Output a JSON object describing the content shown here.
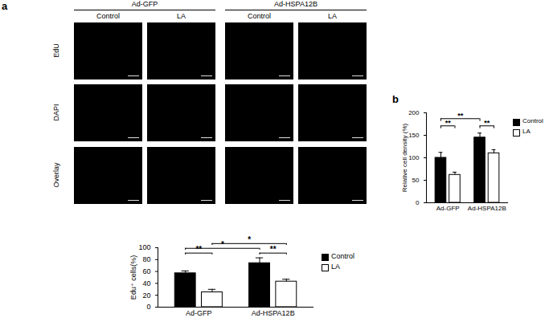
{
  "figure": {
    "panel_label": "a",
    "groups": [
      {
        "name": "Ad-GFP",
        "conditions": [
          "Control",
          "LA"
        ]
      },
      {
        "name": "Ad-HSPA12B",
        "conditions": [
          "Control",
          "LA"
        ]
      }
    ],
    "rows": [
      "EdU",
      "DAPI",
      "Overlay"
    ]
  },
  "chart_data": [
    {
      "type": "bar",
      "y_label": "Edu⁺ cells(%)",
      "categories": [
        "Ad-GFP",
        "Ad-HSPA12B"
      ],
      "series": [
        {
          "name": "Control",
          "color": "#000000",
          "values": [
            57,
            74
          ],
          "errors": [
            4,
            9
          ]
        },
        {
          "name": "LA",
          "color": "#ffffff",
          "values": [
            25,
            43
          ],
          "errors": [
            5,
            4
          ]
        }
      ],
      "ylim": [
        0,
        100
      ],
      "yticks": [
        0,
        20,
        40,
        60,
        80,
        100
      ],
      "legend": "right",
      "annotations": [
        {
          "label": "**",
          "from": {
            "category": "Ad-GFP",
            "series": "Control"
          },
          "to": {
            "category": "Ad-GFP",
            "series": "LA"
          }
        },
        {
          "label": "**",
          "from": {
            "category": "Ad-HSPA12B",
            "series": "Control"
          },
          "to": {
            "category": "Ad-HSPA12B",
            "series": "LA"
          }
        },
        {
          "label": "*",
          "from": {
            "category": "Ad-GFP",
            "series": "Control"
          },
          "to": {
            "category": "Ad-HSPA12B",
            "series": "Control"
          }
        },
        {
          "label": "*",
          "from": {
            "category": "Ad-GFP",
            "series": "LA"
          },
          "to": {
            "category": "Ad-HSPA12B",
            "series": "LA"
          }
        }
      ]
    },
    {
      "type": "bar",
      "panel_label": "b",
      "y_label": "Relative cell density (%)",
      "categories": [
        "Ad-GFP",
        "Ad-HSPA12B"
      ],
      "series": [
        {
          "name": "Control",
          "color": "#000000",
          "values": [
            100,
            145
          ],
          "errors": [
            12,
            10
          ]
        },
        {
          "name": "LA",
          "color": "#ffffff",
          "values": [
            62,
            110
          ],
          "errors": [
            6,
            8
          ]
        }
      ],
      "ylim": [
        0,
        200
      ],
      "yticks": [
        0,
        50,
        100,
        150,
        200
      ],
      "legend": "right",
      "annotations": [
        {
          "label": "**",
          "from": {
            "category": "Ad-GFP",
            "series": "Control"
          },
          "to": {
            "category": "Ad-GFP",
            "series": "LA"
          }
        },
        {
          "label": "**",
          "from": {
            "category": "Ad-HSPA12B",
            "series": "Control"
          },
          "to": {
            "category": "Ad-HSPA12B",
            "series": "LA"
          }
        },
        {
          "label": "**",
          "from": {
            "category": "Ad-GFP",
            "series": "Control"
          },
          "to": {
            "category": "Ad-HSPA12B",
            "series": "Control"
          }
        }
      ]
    }
  ]
}
